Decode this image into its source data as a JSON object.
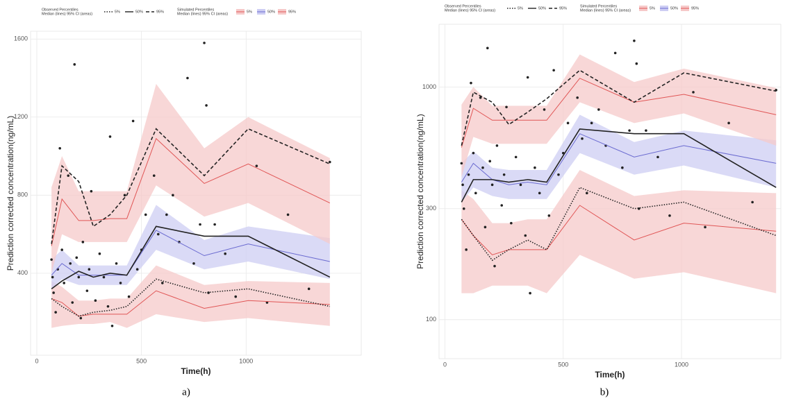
{
  "chart_data": [
    {
      "type": "line",
      "y_scale": "linear",
      "caption": "a)",
      "x_label": "Time(h)",
      "y_label": "Prediction corrected concentration(ng/mL)",
      "xlim": [
        -30,
        1550
      ],
      "xticks": [
        0,
        500,
        1000
      ],
      "ylim": [
        -20,
        1640
      ],
      "yticks": [
        400,
        800,
        1200,
        1600
      ],
      "grid": true,
      "x": [
        70,
        120,
        200,
        270,
        350,
        430,
        570,
        800,
        1010,
        1400
      ],
      "observed": {
        "title": "Observed Percentiles",
        "subtitle": "Median (lines) 95% CI (areas)",
        "series": [
          {
            "name": "5%",
            "color": "#222222",
            "dash": "1.5 2",
            "values": [
              270,
              230,
              180,
              200,
              210,
              230,
              370,
              300,
              320,
              230
            ]
          },
          {
            "name": "50%",
            "color": "#222222",
            "dash": "none",
            "values": [
              320,
              360,
              410,
              380,
              400,
              390,
              640,
              590,
              590,
              380
            ]
          },
          {
            "name": "95%",
            "color": "#222222",
            "dash": "5 3",
            "values": [
              550,
              950,
              870,
              640,
              700,
              800,
              1140,
              900,
              1140,
              960
            ]
          }
        ]
      },
      "simulated": {
        "title": "Simulated Percentiles",
        "subtitle": "Median (lines) 95% CI (areas)",
        "series": [
          {
            "name": "5%",
            "color": "#e05555",
            "band_color": "#f6c9c9",
            "values": [
              270,
              250,
              180,
              190,
              190,
              190,
              310,
              220,
              260,
              240
            ],
            "ci_lower": [
              120,
              130,
              140,
              140,
              150,
              120,
              190,
              150,
              170,
              130
            ],
            "ci_upper": [
              360,
              330,
              260,
              260,
              270,
              270,
              440,
              340,
              360,
              350
            ]
          },
          {
            "name": "50%",
            "color": "#6a6ad0",
            "band_color": "#cdcdf3",
            "values": [
              390,
              450,
              390,
              390,
              390,
              390,
              620,
              490,
              550,
              460
            ],
            "ci_lower": [
              320,
              370,
              340,
              340,
              340,
              340,
              520,
              420,
              460,
              370
            ],
            "ci_upper": [
              470,
              520,
              440,
              440,
              440,
              440,
              750,
              570,
              640,
              580
            ]
          },
          {
            "name": "95%",
            "color": "#e05555",
            "band_color": "#f6c9c9",
            "values": [
              540,
              780,
              670,
              670,
              680,
              680,
              1090,
              860,
              960,
              760
            ],
            "ci_lower": [
              400,
              600,
              560,
              560,
              560,
              560,
              850,
              690,
              760,
              550
            ],
            "ci_upper": [
              840,
              1000,
              820,
              820,
              820,
              820,
              1370,
              1040,
              1200,
              990
            ]
          }
        ]
      },
      "points": {
        "color": "#222222",
        "x": [
          70,
          75,
          80,
          90,
          100,
          110,
          120,
          130,
          150,
          160,
          170,
          180,
          190,
          200,
          210,
          220,
          240,
          250,
          260,
          280,
          300,
          320,
          340,
          350,
          360,
          380,
          400,
          420,
          440,
          460,
          480,
          500,
          520,
          560,
          580,
          600,
          620,
          650,
          680,
          720,
          750,
          780,
          800,
          810,
          820,
          850,
          900,
          950,
          1050,
          1100,
          1200,
          1300,
          1400
        ],
        "y": [
          470,
          380,
          300,
          200,
          420,
          1040,
          520,
          350,
          900,
          450,
          250,
          1470,
          480,
          380,
          170,
          560,
          310,
          420,
          820,
          260,
          500,
          380,
          230,
          1100,
          130,
          450,
          350,
          800,
          280,
          1180,
          420,
          520,
          700,
          900,
          600,
          350,
          700,
          800,
          560,
          1400,
          450,
          650,
          1580,
          1260,
          300,
          650,
          500,
          280,
          950,
          250,
          700,
          320,
          970
        ]
      }
    },
    {
      "type": "line",
      "y_scale": "log",
      "caption": "b)",
      "x_label": "Time(h)",
      "y_label": "Prediction corrected concentration(ng/mL)",
      "xlim": [
        -25,
        1420
      ],
      "xticks": [
        0,
        500,
        1000
      ],
      "ylim": [
        68,
        1860
      ],
      "yticks": [
        100,
        300,
        1000
      ],
      "grid": true,
      "x": [
        70,
        120,
        200,
        270,
        350,
        430,
        570,
        800,
        1010,
        1400
      ],
      "observed": {
        "title": "Observed Percentiles",
        "subtitle": "Median (lines) 95% CI (areas)",
        "series": [
          {
            "name": "5%",
            "color": "#222222",
            "dash": "1.5 2",
            "values": [
              270,
              230,
              180,
              200,
              220,
              200,
              370,
              300,
              320,
              230
            ]
          },
          {
            "name": "50%",
            "color": "#222222",
            "dash": "none",
            "values": [
              320,
              400,
              400,
              390,
              400,
              390,
              660,
              630,
              630,
              370
            ]
          },
          {
            "name": "95%",
            "color": "#222222",
            "dash": "5 3",
            "values": [
              560,
              950,
              860,
              690,
              780,
              890,
              1180,
              860,
              1150,
              960
            ]
          }
        ]
      },
      "simulated": {
        "title": "Simulated Percentiles",
        "subtitle": "Median (lines) 95% CI (areas)",
        "series": [
          {
            "name": "5%",
            "color": "#e05555",
            "band_color": "#f6c9c9",
            "values": [
              270,
              230,
              190,
              200,
              200,
              200,
              310,
              220,
              260,
              240
            ],
            "ci_lower": [
              130,
              130,
              140,
              140,
              140,
              130,
              190,
              150,
              160,
              130
            ],
            "ci_upper": [
              360,
              330,
              260,
              260,
              270,
              270,
              440,
              340,
              360,
              350
            ]
          },
          {
            "name": "50%",
            "color": "#6a6ad0",
            "band_color": "#cdcdf3",
            "values": [
              390,
              470,
              400,
              380,
              390,
              380,
              630,
              500,
              560,
              470
            ],
            "ci_lower": [
              320,
              370,
              340,
              330,
              330,
              330,
              520,
              420,
              460,
              370
            ],
            "ci_upper": [
              470,
              530,
              450,
              440,
              440,
              440,
              760,
              580,
              650,
              590
            ]
          },
          {
            "name": "95%",
            "color": "#e05555",
            "band_color": "#f6c9c9",
            "values": [
              550,
              810,
              720,
              720,
              720,
              720,
              1090,
              860,
              930,
              760
            ],
            "ci_lower": [
              410,
              610,
              570,
              570,
              570,
              570,
              860,
              700,
              770,
              560
            ],
            "ci_upper": [
              840,
              1000,
              830,
              830,
              830,
              830,
              1380,
              1050,
              1200,
              990
            ]
          }
        ]
      },
      "points": {
        "color": "#222222",
        "x": [
          70,
          75,
          80,
          90,
          100,
          110,
          120,
          130,
          150,
          160,
          170,
          180,
          190,
          200,
          210,
          220,
          240,
          250,
          260,
          280,
          300,
          320,
          340,
          350,
          360,
          380,
          400,
          420,
          440,
          460,
          480,
          500,
          520,
          560,
          580,
          600,
          620,
          650,
          680,
          720,
          750,
          780,
          800,
          810,
          820,
          850,
          900,
          950,
          1050,
          1100,
          1200,
          1300,
          1400
        ],
        "y": [
          470,
          380,
          300,
          200,
          420,
          1040,
          520,
          350,
          900,
          450,
          250,
          1470,
          480,
          380,
          170,
          560,
          310,
          420,
          820,
          260,
          500,
          380,
          230,
          1100,
          130,
          450,
          350,
          800,
          280,
          1180,
          420,
          520,
          700,
          900,
          600,
          350,
          700,
          800,
          560,
          1400,
          450,
          650,
          1580,
          1260,
          300,
          650,
          500,
          280,
          950,
          250,
          700,
          320,
          970
        ]
      }
    }
  ]
}
